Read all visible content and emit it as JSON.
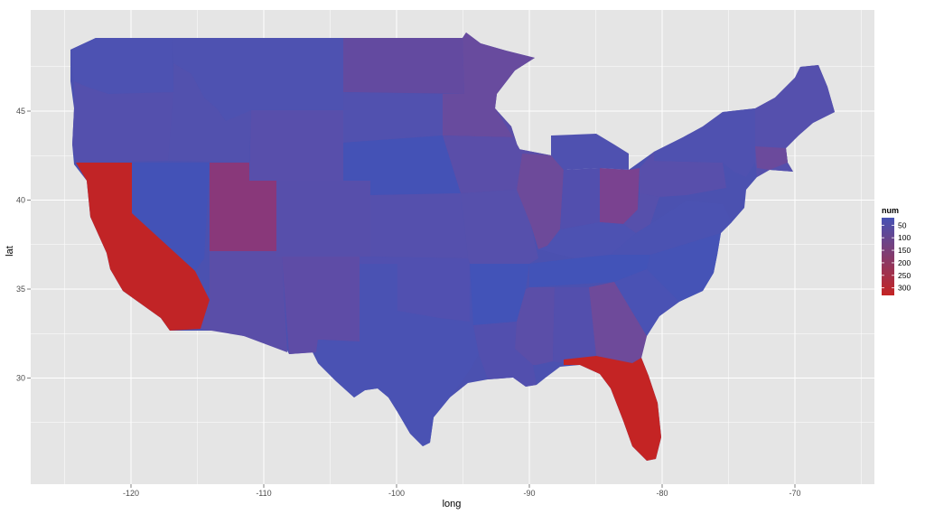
{
  "chart_data": {
    "type": "choropleth",
    "xlabel": "long",
    "ylabel": "lat",
    "xlim": [
      -127,
      -63
    ],
    "ylim": [
      22.5,
      51
    ],
    "x_ticks": [
      -120,
      -110,
      -100,
      -90,
      -80,
      -70
    ],
    "y_ticks": [
      30,
      35,
      40,
      45
    ],
    "x_tick_labels": [
      "-120",
      "-110",
      "-100",
      "-90",
      "-80",
      "-70"
    ],
    "y_tick_labels": [
      "30",
      "35",
      "40",
      "45"
    ],
    "grid": true,
    "legend": {
      "title": "num",
      "placement": "right",
      "breaks": [
        50,
        100,
        150,
        200,
        250,
        300
      ],
      "labels": [
        "50",
        "100",
        "150",
        "200",
        "250",
        "300"
      ],
      "range": [
        20,
        330
      ],
      "color_low": "#4652b4",
      "color_high": "#c42424"
    },
    "regions": [
      {
        "name": "California",
        "value": 320
      },
      {
        "name": "Florida",
        "value": 330
      },
      {
        "name": "Utah",
        "value": 200
      },
      {
        "name": "Ohio",
        "value": 170
      },
      {
        "name": "Georgia",
        "value": 140
      },
      {
        "name": "Minnesota",
        "value": 120
      },
      {
        "name": "North Dakota",
        "value": 110
      },
      {
        "name": "Oregon",
        "value": 90
      },
      {
        "name": "Wyoming",
        "value": 100
      },
      {
        "name": "New Mexico",
        "value": 110
      },
      {
        "name": "Colorado",
        "value": 85
      },
      {
        "name": "Kansas",
        "value": 80
      },
      {
        "name": "Nevada",
        "value": 40
      },
      {
        "name": "Nebraska",
        "value": 40
      },
      {
        "name": "Arkansas",
        "value": 40
      },
      {
        "name": "Texas",
        "value": 60
      },
      {
        "name": "Montana",
        "value": 70
      },
      {
        "name": "Washington",
        "value": 70
      },
      {
        "name": "Idaho",
        "value": 75
      },
      {
        "name": "Arizona",
        "value": 95
      }
    ]
  }
}
